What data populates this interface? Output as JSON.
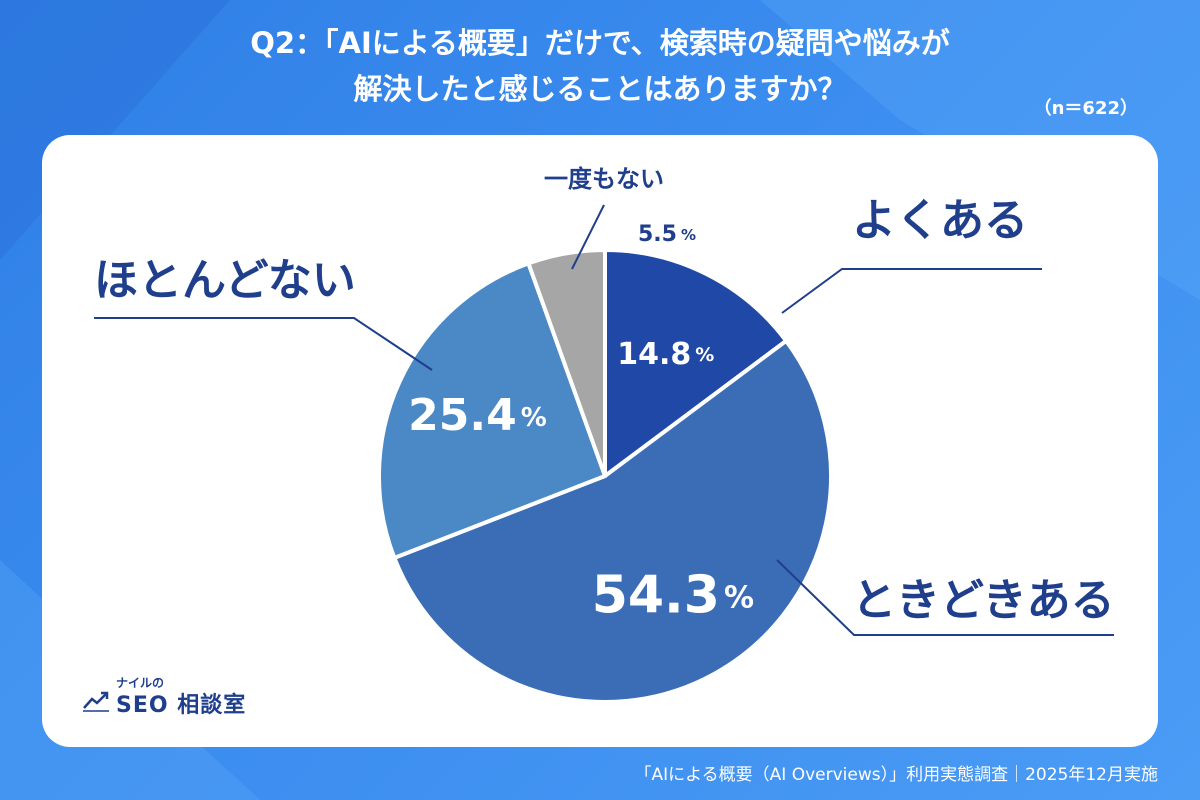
{
  "title": {
    "line1": "Q2：「AIによる概要」だけで、検索時の疑問や悩みが",
    "line2": "解決したと感じることはありますか？"
  },
  "sample_size": "（n＝622）",
  "footer": "「AIによる概要（AI Overviews）」利用実態調査｜2025年12月実施",
  "logo": {
    "small_text": "ナイルの",
    "main_text": "SEO 相談室",
    "icon": "trend-chart-icon"
  },
  "colors": {
    "background": "#3a8bef",
    "often": "#2048a6",
    "sometimes": "#3b6db6",
    "rarely": "#4a88c6",
    "never": "#a6a6a6",
    "label": "#1f3e8c"
  },
  "chart_data": {
    "type": "pie",
    "title": "Q2：「AIによる概要」だけで、検索時の疑問や悩みが解決したと感じることはありますか？",
    "unit": "%",
    "slices": [
      {
        "label": "よくある",
        "value": 14.8,
        "value_text": "14.8",
        "color": "#2048a6"
      },
      {
        "label": "ときどきある",
        "value": 54.3,
        "value_text": "54.3",
        "color": "#3b6db6"
      },
      {
        "label": "ほとんどない",
        "value": 25.4,
        "value_text": "25.4",
        "color": "#4a88c6"
      },
      {
        "label": "一度もない",
        "value": 5.5,
        "value_text": "5.5",
        "color": "#a6a6a6"
      }
    ]
  }
}
